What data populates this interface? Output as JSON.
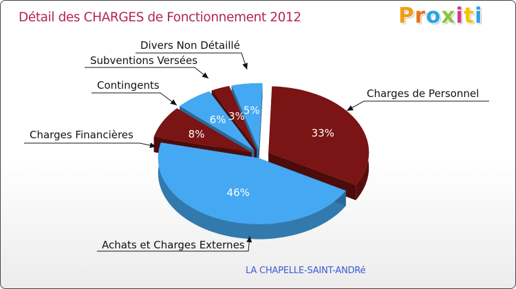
{
  "title": "Détail des CHARGES de Fonctionnement 2012",
  "logo": {
    "letters": [
      "P",
      "r",
      "o",
      "x",
      "i",
      "t",
      "i"
    ],
    "colors": [
      "#f39c12",
      "#e8731a",
      "#2aa5e0",
      "#8bc53f",
      "#d63a8c",
      "#f2c500",
      "#2aa5e0"
    ]
  },
  "commune": "LA CHAPELLE-SAINT-ANDRé",
  "colors": {
    "title": "#b4235a",
    "commune": "#3b5bd6",
    "red": "#7b1414",
    "blue": "#45a8f2"
  },
  "chart_data": {
    "type": "pie",
    "title": "Détail des CHARGES de Fonctionnement 2012",
    "slices": [
      {
        "label": "Charges de Personnel",
        "value": 33,
        "pct_text": "33%",
        "color": "red"
      },
      {
        "label": "Achats et Charges Externes",
        "value": 46,
        "pct_text": "46%",
        "color": "blue"
      },
      {
        "label": "Charges Financières",
        "value": 8,
        "pct_text": "8%",
        "color": "red"
      },
      {
        "label": "Contingents",
        "value": 6,
        "pct_text": "6%",
        "color": "blue"
      },
      {
        "label": "Subventions Versées",
        "value": 3,
        "pct_text": "3%",
        "color": "red"
      },
      {
        "label": "Divers Non Détaillé",
        "value": 5,
        "pct_text": "5%",
        "color": "blue"
      }
    ]
  }
}
